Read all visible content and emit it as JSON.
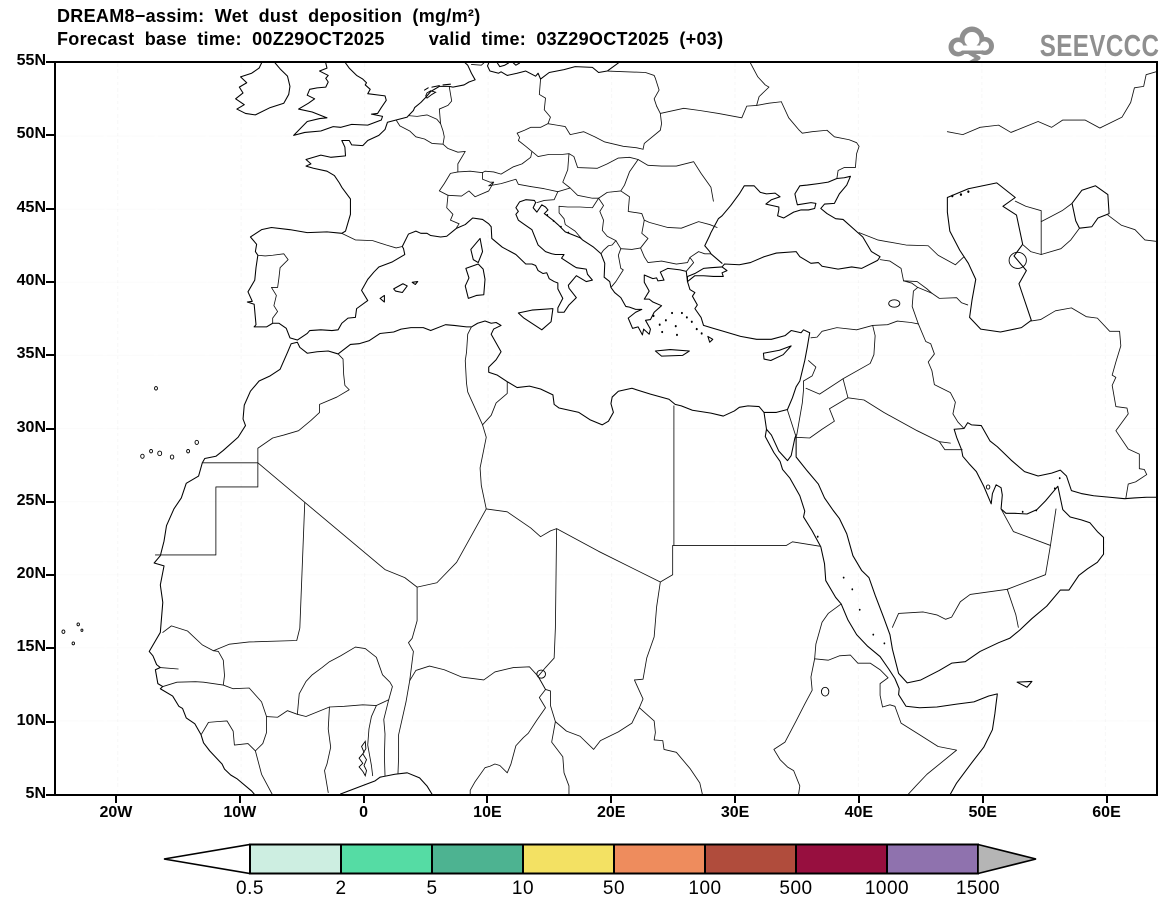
{
  "header": {
    "title_line1": "DREAM8−assim: Wet dust deposition (mg/m²)",
    "forecast_base": "Forecast base time: 00Z29OCT2025",
    "valid_time": "valid time: 03Z29OCT2025 (+03)",
    "logo_text": "SEEVCCC"
  },
  "map": {
    "projection": "lat-lon",
    "lat_labels": [
      "55N",
      "50N",
      "45N",
      "40N",
      "35N",
      "30N",
      "25N",
      "20N",
      "15N",
      "10N",
      "5N"
    ],
    "lon_labels": [
      "20W",
      "10W",
      "0",
      "10E",
      "20E",
      "30E",
      "40E",
      "50E",
      "60E"
    ],
    "grid_on": true
  },
  "colorbar": {
    "tick_labels": [
      "0.5",
      "2",
      "5",
      "10",
      "50",
      "100",
      "500",
      "1000",
      "1500"
    ],
    "tick_values": [
      0.5,
      2,
      5,
      10,
      50,
      100,
      500,
      1000,
      1500
    ],
    "units": "mg/m²",
    "segment_colors": [
      "#cdeee1",
      "#55dca4",
      "#4db391",
      "#f3e163",
      "#ee8c5d",
      "#b04c3c",
      "#970f3f",
      "#8f72ae"
    ],
    "left_arrow_color": "#ffffff",
    "right_arrow_color": "#b5b5b5"
  },
  "colors": {
    "outline": "#000000",
    "grid": "#c3c3c3",
    "logo_gray": "#8f8f8f",
    "background": "#ffffff"
  }
}
